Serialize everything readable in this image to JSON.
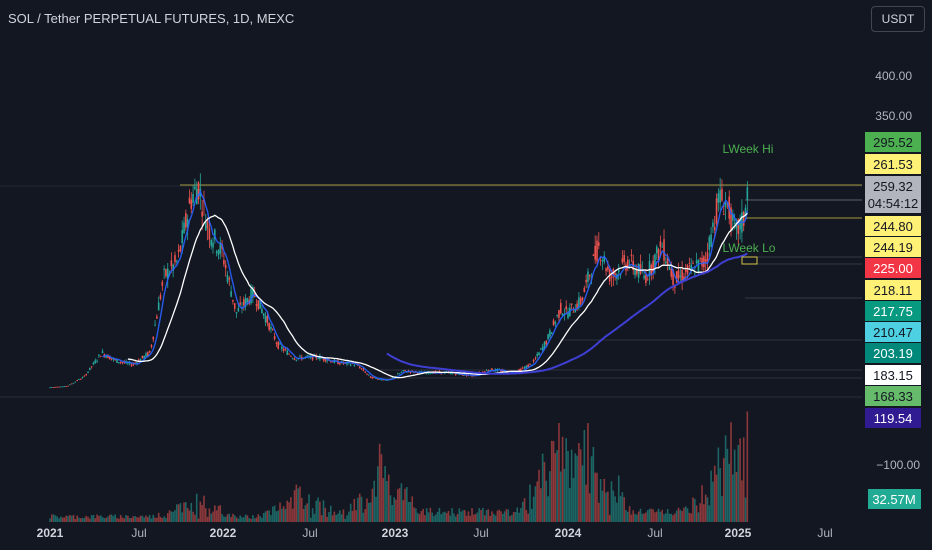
{
  "header": {
    "symbol_title": "SOL / Tether PERPETUAL FUTURES, 1D, MEXC",
    "currency_button": "USDT"
  },
  "colors": {
    "background": "#131722",
    "up": "#26a69a",
    "down": "#ef5350",
    "ma_fast": "#2962ff",
    "ma_slow": "#ffffff",
    "ma_long": "#3f3fd4",
    "level": "#d4c44a",
    "label_green": "#4caf50"
  },
  "annotations": {
    "week_high": "LWeek Hi",
    "week_low": "LWeek Lo"
  },
  "chart_data": {
    "type": "candlestick",
    "x_ticks": [
      "2021",
      "Jul",
      "2022",
      "Jul",
      "2023",
      "Jul",
      "2024",
      "Jul",
      "2025",
      "Jul"
    ],
    "y_ticks": [
      "400.00",
      "350.00"
    ],
    "y_range": [
      0,
      440
    ],
    "close_trend": [
      {
        "t": 2021.0,
        "v": 1.5
      },
      {
        "t": 2021.1,
        "v": 3
      },
      {
        "t": 2021.2,
        "v": 15
      },
      {
        "t": 2021.3,
        "v": 45
      },
      {
        "t": 2021.38,
        "v": 35
      },
      {
        "t": 2021.48,
        "v": 30
      },
      {
        "t": 2021.58,
        "v": 45
      },
      {
        "t": 2021.66,
        "v": 140
      },
      {
        "t": 2021.74,
        "v": 160
      },
      {
        "t": 2021.82,
        "v": 240
      },
      {
        "t": 2021.86,
        "v": 255
      },
      {
        "t": 2021.92,
        "v": 200
      },
      {
        "t": 2022.0,
        "v": 170
      },
      {
        "t": 2022.08,
        "v": 95
      },
      {
        "t": 2022.18,
        "v": 120
      },
      {
        "t": 2022.25,
        "v": 90
      },
      {
        "t": 2022.32,
        "v": 55
      },
      {
        "t": 2022.42,
        "v": 38
      },
      {
        "t": 2022.55,
        "v": 40
      },
      {
        "t": 2022.66,
        "v": 33
      },
      {
        "t": 2022.78,
        "v": 30
      },
      {
        "t": 2022.86,
        "v": 14
      },
      {
        "t": 2022.96,
        "v": 10
      },
      {
        "t": 2023.05,
        "v": 22
      },
      {
        "t": 2023.15,
        "v": 20
      },
      {
        "t": 2023.3,
        "v": 20
      },
      {
        "t": 2023.45,
        "v": 16
      },
      {
        "t": 2023.55,
        "v": 24
      },
      {
        "t": 2023.7,
        "v": 20
      },
      {
        "t": 2023.8,
        "v": 32
      },
      {
        "t": 2023.88,
        "v": 60
      },
      {
        "t": 2023.96,
        "v": 100
      },
      {
        "t": 2024.0,
        "v": 95
      },
      {
        "t": 2024.08,
        "v": 110
      },
      {
        "t": 2024.18,
        "v": 180
      },
      {
        "t": 2024.25,
        "v": 140
      },
      {
        "t": 2024.35,
        "v": 160
      },
      {
        "t": 2024.45,
        "v": 140
      },
      {
        "t": 2024.55,
        "v": 180
      },
      {
        "t": 2024.62,
        "v": 135
      },
      {
        "t": 2024.72,
        "v": 150
      },
      {
        "t": 2024.8,
        "v": 160
      },
      {
        "t": 2024.88,
        "v": 240
      },
      {
        "t": 2024.93,
        "v": 230
      },
      {
        "t": 2024.97,
        "v": 195
      },
      {
        "t": 2025.02,
        "v": 210
      },
      {
        "t": 2025.05,
        "v": 259.32
      }
    ],
    "price_labels": [
      {
        "text": "295.52",
        "value": 295.52,
        "bg": "#4caf50",
        "fg": "#131722"
      },
      {
        "text": "261.53",
        "value": 261.53,
        "bg": "#fff176",
        "fg": "#131722"
      },
      {
        "text": "259.32",
        "value": 259.32,
        "bg": "#b2b5be",
        "fg": "#131722"
      },
      {
        "text": "04:54:12",
        "value": 250.5,
        "bg": "#b2b5be",
        "fg": "#131722"
      },
      {
        "text": "244.80",
        "value": 244.8,
        "bg": "#fff176",
        "fg": "#131722"
      },
      {
        "text": "244.19",
        "value": 244.19,
        "bg": "#fff176",
        "fg": "#131722"
      },
      {
        "text": "225.00",
        "value": 225.0,
        "bg": "#f23645",
        "fg": "#ffffff"
      },
      {
        "text": "218.11",
        "value": 218.11,
        "bg": "#fff176",
        "fg": "#131722"
      },
      {
        "text": "217.75",
        "value": 217.75,
        "bg": "#089981",
        "fg": "#ffffff"
      },
      {
        "text": "210.47",
        "value": 210.47,
        "bg": "#4dd0e1",
        "fg": "#131722"
      },
      {
        "text": "203.19",
        "value": 203.19,
        "bg": "#00897b",
        "fg": "#ffffff"
      },
      {
        "text": "183.15",
        "value": 183.15,
        "bg": "#ffffff",
        "fg": "#131722"
      },
      {
        "text": "168.33",
        "value": 168.33,
        "bg": "#66bb6a",
        "fg": "#131722"
      },
      {
        "text": "119.54",
        "value": 119.54,
        "bg": "#311b92",
        "fg": "#ffffff"
      }
    ],
    "volume": {
      "tick": "−100.00",
      "label": "32.57M",
      "peaks": [
        {
          "t": 2021.85,
          "v": 0.25
        },
        {
          "t": 2022.45,
          "v": 0.35
        },
        {
          "t": 2022.9,
          "v": 0.45
        },
        {
          "t": 2023.95,
          "v": 0.55
        },
        {
          "t": 2024.15,
          "v": 0.5
        },
        {
          "t": 2024.9,
          "v": 0.4
        },
        {
          "t": 2025.04,
          "v": 0.45
        }
      ]
    }
  }
}
